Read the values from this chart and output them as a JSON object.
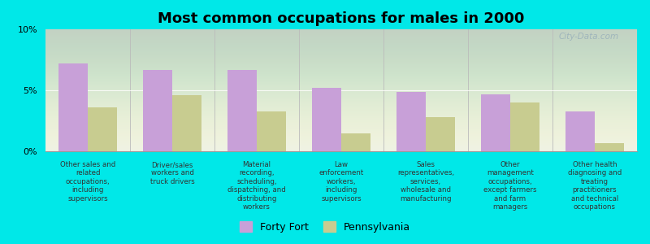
{
  "title": "Most common occupations for males in 2000",
  "categories": [
    "Other sales and\nrelated\noccupations,\nincluding\nsupervisors",
    "Driver/sales\nworkers and\ntruck drivers",
    "Material\nrecording,\nscheduling,\ndispatching, and\ndistributing\nworkers",
    "Law\nenforcement\nworkers,\nincluding\nsupervisors",
    "Sales\nrepresentatives,\nservices,\nwholesale and\nmanufacturing",
    "Other\nmanagement\noccupations,\nexcept farmers\nand farm\nmanagers",
    "Other health\ndiagnosing and\ntreating\npractitioners\nand technical\noccupations"
  ],
  "forty_fort": [
    7.2,
    6.7,
    6.7,
    5.2,
    4.9,
    4.7,
    3.3
  ],
  "pennsylvania": [
    3.6,
    4.6,
    3.3,
    1.5,
    2.8,
    4.0,
    0.7
  ],
  "bar_color_ff": "#c8a0d8",
  "bar_color_pa": "#c8cc90",
  "background_color": "#00e8e8",
  "plot_bg_color": "#edf0e4",
  "ylim": [
    0,
    10
  ],
  "yticks": [
    0,
    5,
    10
  ],
  "ytick_labels": [
    "0%",
    "5%",
    "10%"
  ],
  "legend_ff": "Forty Fort",
  "legend_pa": "Pennsylvania",
  "watermark": "City-Data.com",
  "title_fontsize": 13,
  "label_fontsize": 6.2,
  "legend_fontsize": 9
}
